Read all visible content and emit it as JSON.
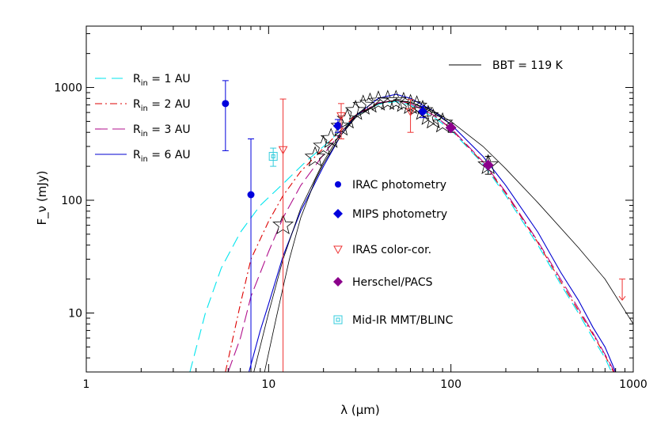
{
  "chart_data": {
    "type": "scatter",
    "xlabel": "λ (μm)",
    "ylabel": "F_ν (mJy)",
    "xscale": "log",
    "yscale": "log",
    "xlim": [
      1,
      1000
    ],
    "ylim": [
      3,
      3500
    ],
    "x_ticks": [
      {
        "value": 1,
        "label": "1"
      },
      {
        "value": 10,
        "label": "10"
      },
      {
        "value": 100,
        "label": "100"
      },
      {
        "value": 1000,
        "label": "1000"
      }
    ],
    "y_ticks": [
      {
        "value": 10,
        "label": "10"
      },
      {
        "value": 100,
        "label": "100"
      },
      {
        "value": 1000,
        "label": "1000"
      }
    ],
    "grid": false,
    "curve_legend_labels": [
      {
        "main": "R",
        "sub": "in",
        "rest": " = 1 AU"
      },
      {
        "main": "R",
        "sub": "in",
        "rest": " = 2 AU"
      },
      {
        "main": "R",
        "sub": "in",
        "rest": " = 3 AU"
      },
      {
        "main": "R",
        "sub": "in",
        "rest": " = 6 AU"
      }
    ],
    "bbt_label": "BBT = 119 K",
    "marker_legend_labels": [
      "IRAC photometry",
      "MIPS photometry",
      "IRAS color-cor.",
      "Herschel/PACS",
      "Mid-IR MMT/BLINC"
    ],
    "curves": [
      {
        "key": "rin1",
        "color": "#00e5ee",
        "dash": "14,7",
        "points": [
          [
            3.7,
            3
          ],
          [
            4.5,
            10
          ],
          [
            5.5,
            25
          ],
          [
            7,
            52
          ],
          [
            9,
            90
          ],
          [
            12,
            140
          ],
          [
            16,
            220
          ],
          [
            20,
            300
          ],
          [
            25,
            420
          ],
          [
            30,
            560
          ],
          [
            40,
            710
          ],
          [
            50,
            750
          ],
          [
            60,
            700
          ],
          [
            80,
            550
          ],
          [
            100,
            420
          ],
          [
            150,
            210
          ],
          [
            200,
            110
          ],
          [
            300,
            40
          ],
          [
            400,
            18
          ],
          [
            500,
            10
          ],
          [
            600,
            6
          ],
          [
            700,
            4
          ],
          [
            760,
            3
          ]
        ]
      },
      {
        "key": "rin2",
        "color": "#dd0000",
        "dash": "9,4,2,4",
        "points": [
          [
            5.8,
            3
          ],
          [
            7,
            12
          ],
          [
            8,
            30
          ],
          [
            10,
            65
          ],
          [
            12,
            110
          ],
          [
            15,
            180
          ],
          [
            20,
            290
          ],
          [
            25,
            420
          ],
          [
            30,
            570
          ],
          [
            40,
            730
          ],
          [
            50,
            770
          ],
          [
            60,
            720
          ],
          [
            80,
            570
          ],
          [
            100,
            430
          ],
          [
            150,
            215
          ],
          [
            200,
            115
          ],
          [
            300,
            42
          ],
          [
            400,
            19
          ],
          [
            500,
            10.5
          ],
          [
            600,
            6.5
          ],
          [
            700,
            4.2
          ],
          [
            780,
            3
          ]
        ]
      },
      {
        "key": "rin3",
        "color": "#b0108c",
        "dash": "16,6",
        "points": [
          [
            6,
            3
          ],
          [
            7,
            6
          ],
          [
            8,
            14
          ],
          [
            10,
            35
          ],
          [
            12,
            70
          ],
          [
            15,
            135
          ],
          [
            20,
            255
          ],
          [
            25,
            400
          ],
          [
            30,
            560
          ],
          [
            40,
            730
          ],
          [
            50,
            770
          ],
          [
            60,
            720
          ],
          [
            80,
            570
          ],
          [
            100,
            435
          ],
          [
            150,
            220
          ],
          [
            200,
            118
          ],
          [
            300,
            43
          ],
          [
            400,
            20
          ],
          [
            500,
            11
          ],
          [
            600,
            6.7
          ],
          [
            700,
            4.3
          ],
          [
            790,
            3
          ]
        ]
      },
      {
        "key": "rin6",
        "color": "#0000d0",
        "dash": "",
        "points": [
          [
            7.8,
            3
          ],
          [
            9,
            7
          ],
          [
            10,
            12
          ],
          [
            12,
            32
          ],
          [
            15,
            80
          ],
          [
            20,
            200
          ],
          [
            25,
            380
          ],
          [
            30,
            560
          ],
          [
            40,
            800
          ],
          [
            50,
            870
          ],
          [
            60,
            800
          ],
          [
            80,
            620
          ],
          [
            100,
            470
          ],
          [
            150,
            245
          ],
          [
            200,
            135
          ],
          [
            300,
            52
          ],
          [
            400,
            23
          ],
          [
            500,
            13
          ],
          [
            600,
            7.5
          ],
          [
            700,
            5
          ],
          [
            800,
            3
          ]
        ]
      },
      {
        "key": "bbt",
        "color": "#000000",
        "dash": "",
        "width": 0.8,
        "points": [
          [
            8.3,
            3
          ],
          [
            10,
            10
          ],
          [
            12,
            30
          ],
          [
            15,
            85
          ],
          [
            20,
            220
          ],
          [
            25,
            400
          ],
          [
            30,
            560
          ],
          [
            40,
            720
          ],
          [
            50,
            770
          ],
          [
            60,
            740
          ],
          [
            80,
            620
          ],
          [
            100,
            500
          ],
          [
            150,
            300
          ],
          [
            200,
            190
          ],
          [
            300,
            95
          ],
          [
            500,
            38
          ],
          [
            700,
            20
          ],
          [
            1000,
            8
          ]
        ]
      },
      {
        "key": "thin",
        "color": "#000000",
        "dash": "",
        "width": 0.8,
        "points": [
          [
            9.5,
            3
          ],
          [
            11,
            9
          ],
          [
            13,
            30
          ],
          [
            15,
            70
          ],
          [
            18,
            150
          ],
          [
            20,
            210
          ],
          [
            25,
            380
          ],
          [
            30,
            540
          ],
          [
            40,
            720
          ],
          [
            50,
            770
          ],
          [
            60,
            740
          ],
          [
            80,
            600
          ],
          [
            100,
            470
          ]
        ]
      }
    ],
    "irac": [
      {
        "x": 5.8,
        "y": 720,
        "lo": 275,
        "hi": 1150
      },
      {
        "x": 8.0,
        "y": 112,
        "lo": 3,
        "hi": 350
      },
      {
        "x": 24,
        "y": 460,
        "lo": 400,
        "hi": 520
      },
      {
        "x": 70,
        "y": 610,
        "lo": 540,
        "hi": 680
      }
    ],
    "mips": [
      {
        "x": 24,
        "y": 455
      },
      {
        "x": 70,
        "y": 615
      }
    ],
    "iras": [
      {
        "x": 12,
        "y": 280,
        "lo": 3,
        "hi": 790
      },
      {
        "x": 25,
        "y": 560,
        "lo": 350,
        "hi": 720
      },
      {
        "x": 60,
        "y": 610,
        "lo": 400,
        "hi": 780
      }
    ],
    "iras_upper_limit": {
      "x": 870,
      "y": 20,
      "to": 13
    },
    "pacs": [
      {
        "x": 100,
        "y": 440,
        "lo": 400,
        "hi": 480
      },
      {
        "x": 160,
        "y": 205,
        "lo": 170,
        "hi": 245
      }
    ],
    "mmt": [
      {
        "x": 10.6,
        "y": 245,
        "lo": 200,
        "hi": 290
      }
    ],
    "stars": [
      [
        12,
        60
      ],
      [
        18,
        240
      ],
      [
        20,
        300
      ],
      [
        22,
        350
      ],
      [
        25,
        450
      ],
      [
        27,
        520
      ],
      [
        30,
        620
      ],
      [
        33,
        690
      ],
      [
        36,
        720
      ],
      [
        40,
        750
      ],
      [
        45,
        760
      ],
      [
        50,
        760
      ],
      [
        55,
        730
      ],
      [
        60,
        700
      ],
      [
        65,
        680
      ],
      [
        70,
        620
      ],
      [
        75,
        560
      ],
      [
        80,
        520
      ],
      [
        90,
        480
      ],
      [
        160,
        205
      ]
    ]
  },
  "colors": {
    "irac": "#0000dd",
    "mips": "#0000dd",
    "iras": "#ee3333",
    "pacs": "#8b008b",
    "mmt": "#33ccdd",
    "bbt": "#000000"
  }
}
